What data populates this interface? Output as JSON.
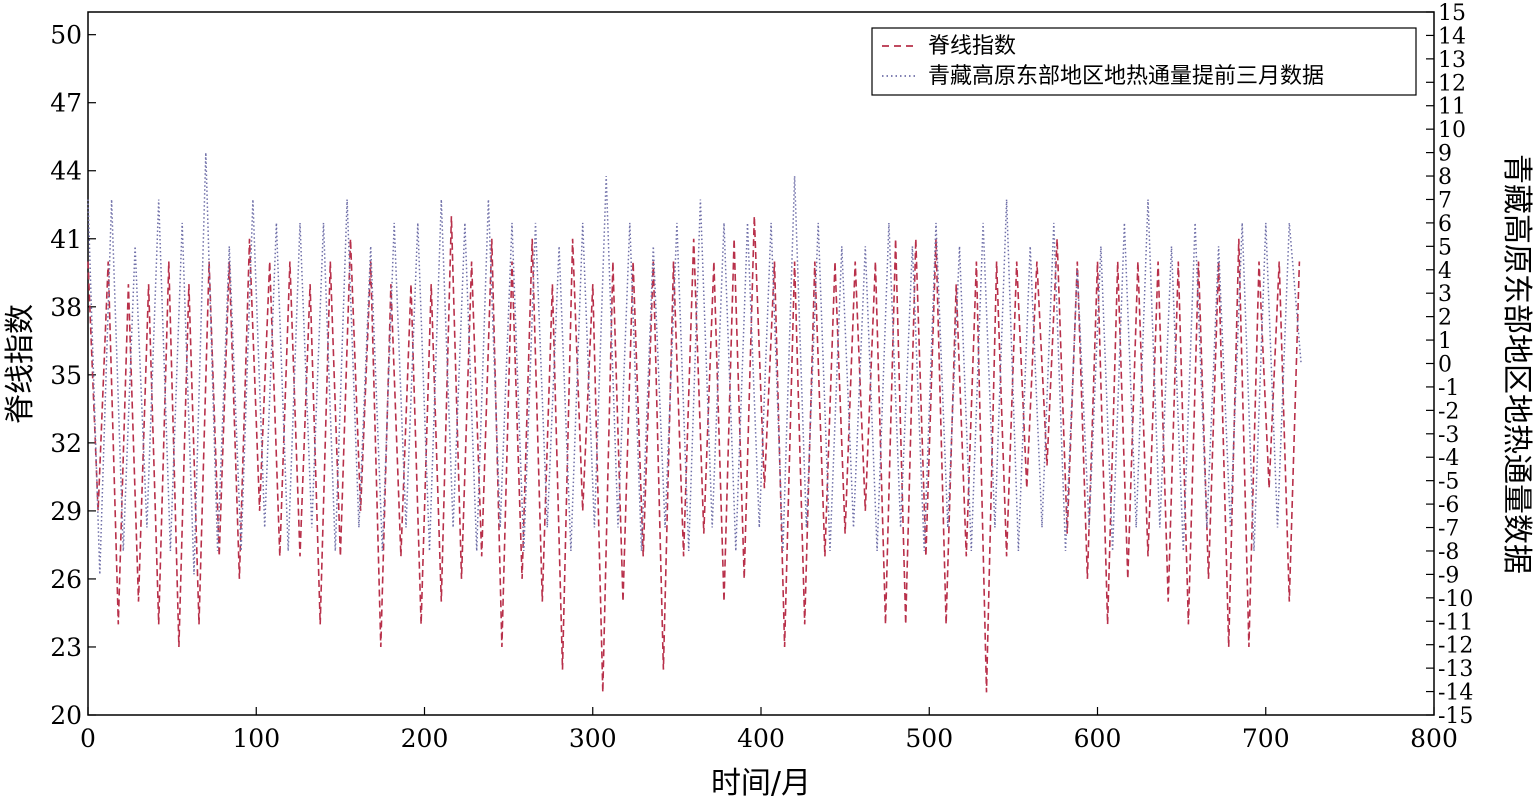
{
  "chart_data": {
    "type": "line",
    "xlabel": "时间/月",
    "ylabel": "脊线指数",
    "y2label": "青藏高原东部地区地热通量数据",
    "xlim": [
      0,
      800
    ],
    "ylim": [
      20,
      51
    ],
    "y2lim": [
      -15,
      15
    ],
    "x_ticks": [
      0,
      100,
      200,
      300,
      400,
      500,
      600,
      700,
      800
    ],
    "y_ticks": [
      20,
      23,
      26,
      29,
      32,
      35,
      38,
      41,
      44,
      47,
      50
    ],
    "y2_ticks": [
      -15,
      -14,
      -13,
      -12,
      -11,
      -10,
      -9,
      -8,
      -7,
      -6,
      -5,
      -4,
      -3,
      -2,
      -1,
      0,
      1,
      2,
      3,
      4,
      5,
      6,
      7,
      8,
      9,
      10,
      11,
      12,
      13,
      14,
      15
    ],
    "legend_position": "top-right",
    "series_meta": [
      {
        "name": "脊线指数",
        "axis": "left",
        "style": "dashed",
        "color": "#b8304a"
      },
      {
        "name": "青藏高原东部地区地热通量提前三月数据",
        "axis": "right",
        "style": "dotted",
        "color": "#6f6fa8"
      }
    ],
    "series_points": [
      {
        "x": [
          0,
          6,
          12,
          18,
          24,
          30,
          36,
          42,
          48,
          54,
          60,
          66,
          72,
          78,
          84,
          90,
          96,
          102,
          108,
          114,
          120,
          126,
          132,
          138,
          144,
          150,
          156,
          162,
          168,
          174,
          180,
          186,
          192,
          198,
          204,
          210,
          216,
          222,
          228,
          234,
          240,
          246,
          252,
          258,
          264,
          270,
          276,
          282,
          288,
          294,
          300,
          306,
          312,
          318,
          324,
          330,
          336,
          342,
          348,
          354,
          360,
          366,
          372,
          378,
          384,
          390,
          396,
          402,
          408,
          414,
          420,
          426,
          432,
          438,
          444,
          450,
          456,
          462,
          468,
          474,
          480,
          486,
          492,
          498,
          504,
          510,
          516,
          522,
          528,
          534,
          540,
          546,
          552,
          558,
          564,
          570,
          576,
          582,
          588,
          594,
          600,
          606,
          612,
          618,
          624,
          630,
          636,
          642,
          648,
          654,
          660,
          666,
          672,
          678,
          684,
          690,
          696,
          702,
          708,
          714,
          720
        ],
        "y": [
          40,
          29,
          40,
          24,
          39,
          25,
          39,
          24,
          40,
          23,
          39,
          24,
          40,
          27,
          40,
          26,
          41,
          29,
          40,
          27,
          40,
          27,
          39,
          24,
          40,
          27,
          41,
          29,
          40,
          23,
          39,
          27,
          39,
          24,
          39,
          25,
          42,
          26,
          40,
          27,
          41,
          23,
          40,
          26,
          41,
          25,
          39,
          22,
          41,
          29,
          39,
          21,
          40,
          25,
          40,
          27,
          40,
          22,
          40,
          27,
          41,
          28,
          40,
          25,
          41,
          26,
          42,
          30,
          40,
          23,
          40,
          24,
          40,
          27,
          40,
          28,
          40,
          29,
          40,
          24,
          41,
          24,
          41,
          27,
          41,
          24,
          39,
          27,
          40,
          21,
          40,
          27,
          40,
          30,
          40,
          31,
          41,
          28,
          40,
          26,
          40,
          24,
          40,
          26,
          40,
          27,
          40,
          25,
          40,
          24,
          40,
          26,
          40,
          23,
          41,
          23,
          40,
          30,
          40,
          25,
          40
        ]
      },
      {
        "x": [
          0,
          7,
          14,
          21,
          28,
          35,
          42,
          49,
          56,
          63,
          70,
          77,
          84,
          91,
          98,
          105,
          112,
          119,
          126,
          133,
          140,
          147,
          154,
          161,
          168,
          175,
          182,
          189,
          196,
          203,
          210,
          217,
          224,
          231,
          238,
          245,
          252,
          259,
          266,
          273,
          280,
          287,
          294,
          301,
          308,
          315,
          322,
          329,
          336,
          343,
          350,
          357,
          364,
          371,
          378,
          385,
          392,
          399,
          406,
          413,
          420,
          427,
          434,
          441,
          448,
          455,
          462,
          469,
          476,
          483,
          490,
          497,
          504,
          511,
          518,
          525,
          532,
          539,
          546,
          553,
          560,
          567,
          574,
          581,
          588,
          595,
          602,
          609,
          616,
          623,
          630,
          637,
          644,
          651,
          658,
          665,
          672,
          679,
          686,
          693,
          700,
          707,
          714,
          721
        ],
        "y": [
          7,
          -9,
          7,
          -8,
          5,
          -7,
          7,
          -8,
          6,
          -9,
          9,
          -8,
          5,
          -8,
          7,
          -7,
          6,
          -8,
          6,
          -7,
          6,
          -8,
          7,
          -7,
          5,
          -8,
          6,
          -7,
          6,
          -8,
          7,
          -7,
          6,
          -8,
          7,
          -7,
          6,
          -8,
          6,
          -7,
          5,
          -8,
          6,
          -7,
          8,
          -7,
          6,
          -8,
          5,
          -7,
          6,
          -8,
          7,
          -7,
          6,
          -8,
          6,
          -7,
          6,
          -8,
          8,
          -7,
          6,
          -8,
          5,
          -7,
          5,
          -8,
          6,
          -7,
          5,
          -8,
          6,
          -7,
          5,
          -8,
          6,
          -7,
          7,
          -8,
          5,
          -7,
          6,
          -8,
          4,
          -7,
          5,
          -8,
          6,
          -7,
          7,
          -7,
          5,
          -8,
          6,
          -7,
          5,
          -7,
          6,
          -8,
          6,
          -7,
          6,
          0
        ]
      }
    ]
  }
}
